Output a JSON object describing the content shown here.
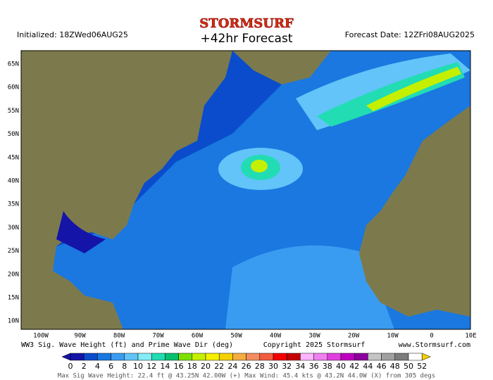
{
  "header": {
    "logo": "STORMSURF",
    "title": "+42hr Forecast",
    "initialized": "Initialized: 18ZWed06AUG25",
    "forecast_date": "Forecast Date: 12ZFri08AUG2025"
  },
  "map": {
    "lat_labels": [
      "65N",
      "60N",
      "55N",
      "50N",
      "45N",
      "40N",
      "35N",
      "30N",
      "25N",
      "20N",
      "15N",
      "10N"
    ],
    "lon_labels": [
      "100W",
      "90W",
      "80W",
      "70W",
      "60W",
      "50W",
      "40W",
      "30W",
      "20W",
      "10W",
      "0",
      "10E"
    ]
  },
  "caption": {
    "left": "WW3 Sig. Wave Height (ft) and Prime Wave Dir (deg)",
    "middle": "Copyright 2025 Stormsurf",
    "right": "www.Stormsurf.com"
  },
  "legend": {
    "ticks": [
      0,
      2,
      4,
      6,
      8,
      10,
      12,
      14,
      16,
      18,
      20,
      22,
      24,
      26,
      28,
      30,
      32,
      34,
      36,
      38,
      40,
      42,
      44,
      46,
      48,
      50,
      52
    ],
    "colors": [
      "#1414a8",
      "#0a4ccc",
      "#1a78e0",
      "#3a9cf0",
      "#62c4f8",
      "#84ecf4",
      "#22dcb4",
      "#08c070",
      "#7ee000",
      "#c4f000",
      "#f4f000",
      "#f4d000",
      "#f4ae40",
      "#f48c60",
      "#f45c40",
      "#f40000",
      "#c40000",
      "#ffb4ff",
      "#f080f0",
      "#e040e0",
      "#c000c0",
      "#8c00a0",
      "#c4c4c4",
      "#a0a0a0",
      "#7c7c7c",
      "#ffffff"
    ]
  },
  "footer": "Max Sig Wave Height: 22.4 ft @ 43.25N 42.00W (+)  Max Wind: 45.4 kts @ 43.2N 44.0W (X) from 305 degs"
}
